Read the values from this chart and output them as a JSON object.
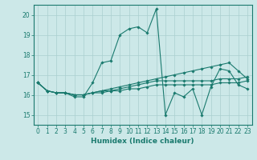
{
  "title": "",
  "xlabel": "Humidex (Indice chaleur)",
  "ylabel": "",
  "bg_color": "#cce8e8",
  "line_color": "#1a7a6e",
  "grid_color": "#aacfcf",
  "xlim": [
    -0.5,
    23.5
  ],
  "ylim": [
    14.5,
    20.5
  ],
  "yticks": [
    15,
    16,
    17,
    18,
    19,
    20
  ],
  "xticks": [
    0,
    1,
    2,
    3,
    4,
    5,
    6,
    7,
    8,
    9,
    10,
    11,
    12,
    13,
    14,
    15,
    16,
    17,
    18,
    19,
    20,
    21,
    22,
    23
  ],
  "lines": [
    [
      16.6,
      16.2,
      16.1,
      16.1,
      15.9,
      15.9,
      16.6,
      17.6,
      17.7,
      19.0,
      19.3,
      19.4,
      19.1,
      20.3,
      15.0,
      16.1,
      15.9,
      16.3,
      15.0,
      16.4,
      17.3,
      17.2,
      16.5,
      16.3
    ],
    [
      16.6,
      16.2,
      16.1,
      16.1,
      16.0,
      16.0,
      16.1,
      16.2,
      16.3,
      16.4,
      16.5,
      16.6,
      16.7,
      16.8,
      16.9,
      17.0,
      17.1,
      17.2,
      17.3,
      17.4,
      17.5,
      17.6,
      17.2,
      16.8
    ],
    [
      16.6,
      16.2,
      16.1,
      16.1,
      16.0,
      16.0,
      16.1,
      16.2,
      16.2,
      16.3,
      16.4,
      16.5,
      16.6,
      16.7,
      16.7,
      16.7,
      16.7,
      16.7,
      16.7,
      16.7,
      16.8,
      16.8,
      16.8,
      16.9
    ],
    [
      16.6,
      16.2,
      16.1,
      16.1,
      16.0,
      16.0,
      16.1,
      16.1,
      16.2,
      16.2,
      16.3,
      16.3,
      16.4,
      16.5,
      16.5,
      16.5,
      16.5,
      16.5,
      16.5,
      16.5,
      16.6,
      16.6,
      16.6,
      16.7
    ]
  ]
}
